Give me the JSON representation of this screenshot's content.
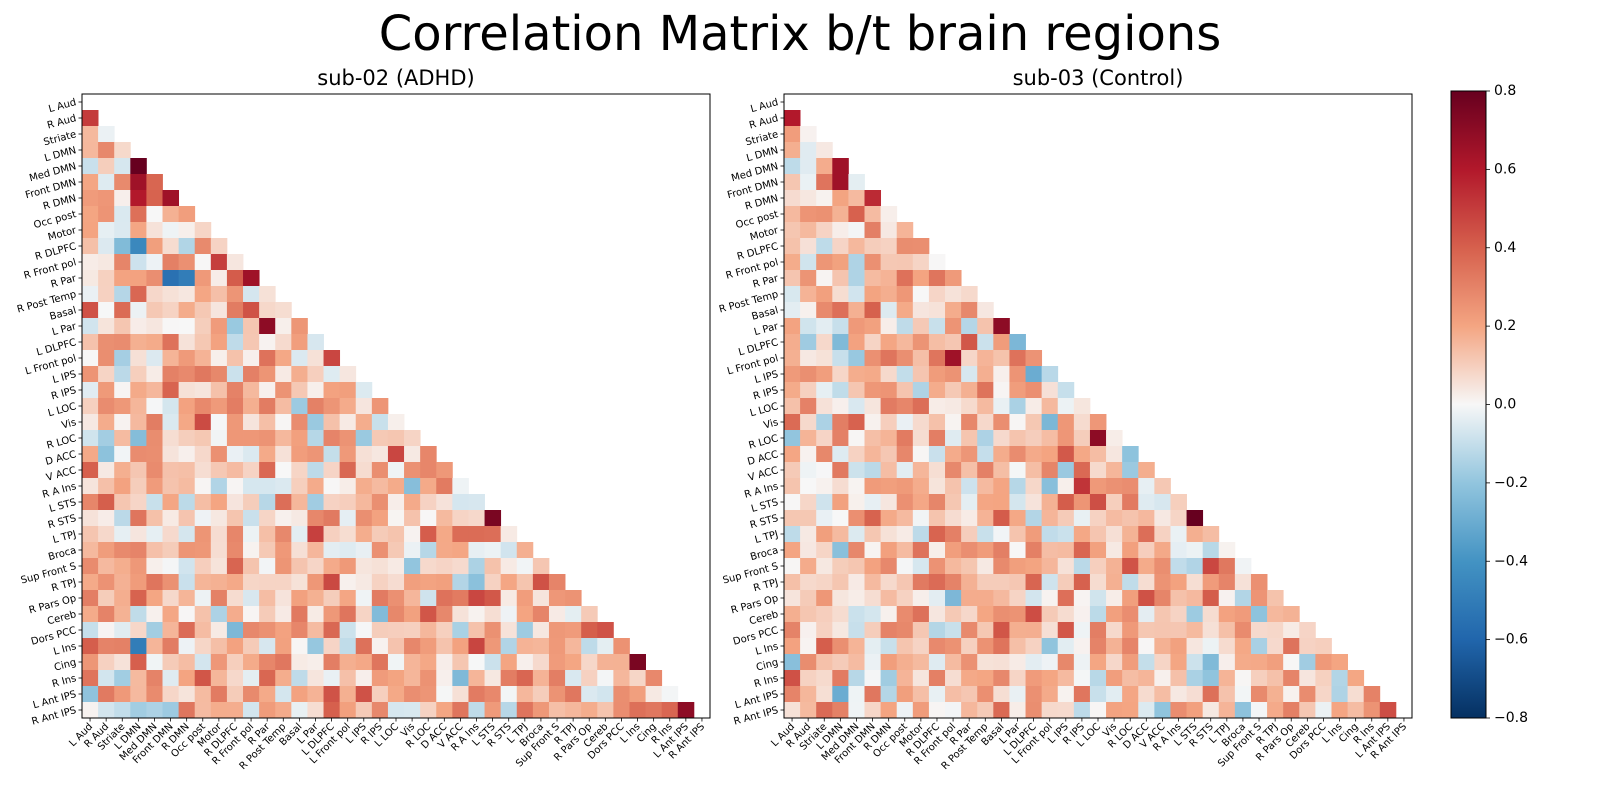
{
  "chart_data": {
    "type": "heatmap",
    "title": "Correlation Matrix b/t brain regions",
    "labels": [
      "L Aud",
      "R Aud",
      "Striate",
      "L DMN",
      "Med DMN",
      "Front DMN",
      "R DMN",
      "Occ post",
      "Motor",
      "R DLPFC",
      "R Front pol",
      "R Par",
      "R Post Temp",
      "Basal",
      "L Par",
      "L DLPFC",
      "L Front pol",
      "L IPS",
      "R IPS",
      "L LOC",
      "Vis",
      "R LOC",
      "D ACC",
      "V ACC",
      "R A Ins",
      "L STS",
      "R STS",
      "L TPJ",
      "Broca",
      "Sup Front S",
      "R TPJ",
      "R Pars Op",
      "Cereb",
      "Dors PCC",
      "L Ins",
      "Cing",
      "R Ins",
      "L Ant IPS",
      "R Ant IPS"
    ],
    "mask": "lower triangle (diagonal excluded)",
    "colormap": "RdBu_r",
    "vmin": -0.8,
    "vmax": 0.8,
    "colorbar_ticks": [
      "0.8",
      "0.6",
      "0.4",
      "0.2",
      "0.0",
      "−0.2",
      "−0.4",
      "−0.6",
      "−0.8"
    ],
    "colorbar_values": [
      0.8,
      0.6,
      0.4,
      0.2,
      0.0,
      -0.2,
      -0.4,
      -0.6,
      -0.8
    ],
    "panels": [
      {
        "title": "sub-02 (ADHD)",
        "key_correlations": [
          {
            "row": "R Aud",
            "col": "L Aud",
            "value": 0.5
          },
          {
            "row": "Med DMN",
            "col": "L DMN",
            "value": 0.8
          },
          {
            "row": "Front DMN",
            "col": "L DMN",
            "value": 0.65
          },
          {
            "row": "R DMN",
            "col": "L DMN",
            "value": 0.6
          },
          {
            "row": "R DMN",
            "col": "Front DMN",
            "value": 0.65
          },
          {
            "row": "R Par",
            "col": "R Front pol",
            "value": 0.65
          },
          {
            "row": "L Par",
            "col": "R Par",
            "value": 0.7
          },
          {
            "row": "R STS",
            "col": "L STS",
            "value": 0.75
          },
          {
            "row": "Cing",
            "col": "L Ins",
            "value": 0.75
          },
          {
            "row": "R Ant IPS",
            "col": "L Ant IPS",
            "value": 0.7
          },
          {
            "row": "R Par",
            "col": "Front DMN",
            "value": -0.55
          },
          {
            "row": "R Par",
            "col": "R DMN",
            "value": -0.5
          },
          {
            "row": "R DLPFC",
            "col": "L DMN",
            "value": -0.45
          },
          {
            "row": "L Ins",
            "col": "L DMN",
            "value": -0.5
          }
        ]
      },
      {
        "title": "sub-03 (Control)",
        "key_correlations": [
          {
            "row": "R Aud",
            "col": "L Aud",
            "value": 0.6
          },
          {
            "row": "Med DMN",
            "col": "L DMN",
            "value": 0.65
          },
          {
            "row": "Front DMN",
            "col": "L DMN",
            "value": 0.65
          },
          {
            "row": "R DMN",
            "col": "Front DMN",
            "value": 0.55
          },
          {
            "row": "L Front pol",
            "col": "R Front pol",
            "value": 0.65
          },
          {
            "row": "L Par",
            "col": "Basal",
            "value": 0.7
          },
          {
            "row": "R LOC",
            "col": "L LOC",
            "value": 0.7
          },
          {
            "row": "R STS",
            "col": "L STS",
            "value": 0.8
          },
          {
            "row": "Cing",
            "col": "L Ins",
            "value": 0.2
          },
          {
            "row": "R Ant IPS",
            "col": "L Ant IPS",
            "value": 0.45
          },
          {
            "row": "L IPS",
            "col": "L DLPFC",
            "value": -0.3
          },
          {
            "row": "L Ant IPS",
            "col": "L DMN",
            "value": -0.3
          }
        ]
      }
    ]
  }
}
